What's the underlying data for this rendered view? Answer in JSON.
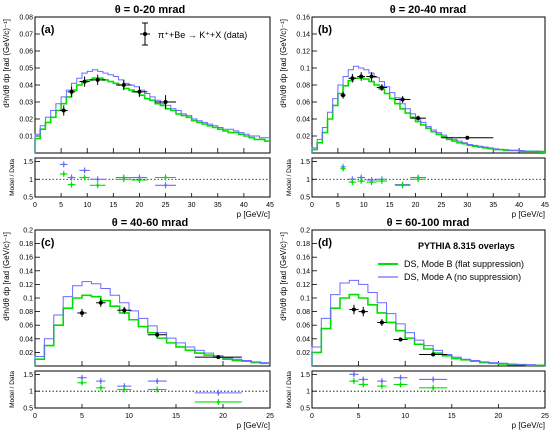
{
  "figure": {
    "legend_header": "PYTHIA 8.315 overlays",
    "model_legend": [
      {
        "name": "DS, Mode B (flat suppression)",
        "color": "#00e000"
      },
      {
        "name": "DS, Mode A (no suppression)",
        "color": "#6b6bff"
      }
    ],
    "data_legend": "π⁺+Be → K⁺+X (data)",
    "colors": {
      "data": "#000000",
      "mode_b": "#00e000",
      "mode_a": "#6b6bff"
    }
  },
  "chart_data": [
    {
      "type": "line",
      "title": "θ = 0-20 mrad",
      "tag": "(a)",
      "xlabel": "p [GeV/c]",
      "ylabel": "d²n/dθ dp [rad (GeV/c)⁻¹]",
      "ratio_ylabel": "Model / Data",
      "xlim": [
        0,
        45
      ],
      "ylim": [
        0,
        0.08
      ],
      "ratio_ylim": [
        0.5,
        1.6
      ],
      "xticks": [
        "0",
        "5",
        "10",
        "15",
        "20",
        "25",
        "30",
        "35",
        "40",
        "45"
      ],
      "yticks": [
        "0.01",
        "0.02",
        "0.03",
        "0.04",
        "0.05",
        "0.06",
        "0.07",
        "0.08"
      ],
      "ratio_yticks": [
        "0.5",
        "1",
        "1.5"
      ],
      "bin_edges": [
        0,
        1,
        2,
        3,
        4,
        5,
        6,
        7,
        8,
        9,
        10,
        11,
        12,
        13,
        14,
        15,
        16,
        17,
        18,
        19,
        20,
        21,
        22,
        23,
        24,
        25,
        26,
        27,
        28,
        29,
        30,
        31,
        32,
        33,
        34,
        35,
        36,
        37,
        38,
        39,
        40,
        41,
        42,
        43,
        44,
        45
      ],
      "series": [
        {
          "name": "DS, Mode B (flat suppression)",
          "color": "#00e000",
          "values": [
            0.0085,
            0.014,
            0.018,
            0.021,
            0.025,
            0.029,
            0.033,
            0.037,
            0.04,
            0.042,
            0.043,
            0.044,
            0.044,
            0.043,
            0.042,
            0.041,
            0.04,
            0.038,
            0.037,
            0.036,
            0.034,
            0.032,
            0.031,
            0.029,
            0.028,
            0.026,
            0.025,
            0.023,
            0.022,
            0.021,
            0.019,
            0.018,
            0.017,
            0.016,
            0.015,
            0.014,
            0.013,
            0.012,
            0.012,
            0.011,
            0.01,
            0.009,
            0.008,
            0.008,
            0.007
          ]
        },
        {
          "name": "DS, Mode A (no suppression)",
          "color": "#6b6bff",
          "values": [
            0.011,
            0.016,
            0.021,
            0.025,
            0.029,
            0.033,
            0.037,
            0.041,
            0.044,
            0.047,
            0.048,
            0.049,
            0.048,
            0.047,
            0.046,
            0.045,
            0.043,
            0.041,
            0.04,
            0.039,
            0.037,
            0.035,
            0.033,
            0.031,
            0.029,
            0.028,
            0.026,
            0.025,
            0.023,
            0.022,
            0.02,
            0.019,
            0.018,
            0.017,
            0.016,
            0.015,
            0.014,
            0.014,
            0.013,
            0.012,
            0.011,
            0.01,
            0.01,
            0.009,
            0.009
          ]
        }
      ],
      "data": [
        {
          "x": 5.5,
          "y": 0.025,
          "xerr": 0.75,
          "yerr": 0.003
        },
        {
          "x": 7.0,
          "y": 0.036,
          "xerr": 0.75,
          "yerr": 0.003
        },
        {
          "x": 9.5,
          "y": 0.042,
          "xerr": 1.0,
          "yerr": 0.003
        },
        {
          "x": 12.0,
          "y": 0.043,
          "xerr": 1.5,
          "yerr": 0.003
        },
        {
          "x": 17.0,
          "y": 0.04,
          "xerr": 1.5,
          "yerr": 0.003
        },
        {
          "x": 20.0,
          "y": 0.036,
          "xerr": 1.5,
          "yerr": 0.003
        },
        {
          "x": 25.0,
          "y": 0.03,
          "xerr": 2.0,
          "yerr": 0.004
        }
      ],
      "ratio": [
        {
          "x": 5.5,
          "xerr": 0.75,
          "a": 1.42,
          "b": 1.15
        },
        {
          "x": 7.0,
          "xerr": 0.75,
          "a": 1.05,
          "b": 0.85
        },
        {
          "x": 9.5,
          "xerr": 1.0,
          "a": 1.25,
          "b": 1.05
        },
        {
          "x": 12.0,
          "xerr": 1.5,
          "a": 1.0,
          "b": 0.83
        },
        {
          "x": 17.0,
          "xerr": 1.5,
          "a": 1.05,
          "b": 1.0
        },
        {
          "x": 20.0,
          "xerr": 1.5,
          "a": 1.05,
          "b": 0.98
        },
        {
          "x": 25.0,
          "xerr": 2.0,
          "a": 0.83,
          "b": 1.05
        }
      ]
    },
    {
      "type": "line",
      "title": "θ = 20-40 mrad",
      "tag": "(b)",
      "xlabel": "p [GeV/c]",
      "ylabel": "d²n/dθ dp [rad (GeV/c)⁻¹]",
      "ratio_ylabel": "Model / Data",
      "xlim": [
        0,
        45
      ],
      "ylim": [
        0,
        0.16
      ],
      "ratio_ylim": [
        0.5,
        1.6
      ],
      "xticks": [
        "0",
        "5",
        "10",
        "15",
        "20",
        "25",
        "30",
        "35",
        "40",
        "45"
      ],
      "yticks": [
        "0.02",
        "0.04",
        "0.06",
        "0.08",
        "0.1",
        "0.12",
        "0.14",
        "0.16"
      ],
      "ratio_yticks": [
        "0.5",
        "1",
        "1.5"
      ],
      "bin_edges": [
        0,
        1,
        2,
        3,
        4,
        5,
        6,
        7,
        8,
        9,
        10,
        11,
        12,
        13,
        14,
        15,
        16,
        17,
        18,
        19,
        20,
        21,
        22,
        23,
        24,
        25,
        26,
        27,
        28,
        29,
        30,
        31,
        32,
        33,
        34,
        35,
        36,
        37,
        38,
        39,
        40,
        41,
        42,
        43,
        44,
        45
      ],
      "series": [
        {
          "name": "DS, Mode B (flat suppression)",
          "color": "#00e000",
          "values": [
            0.004,
            0.012,
            0.024,
            0.04,
            0.056,
            0.07,
            0.079,
            0.085,
            0.088,
            0.088,
            0.087,
            0.084,
            0.08,
            0.075,
            0.07,
            0.064,
            0.058,
            0.052,
            0.047,
            0.042,
            0.037,
            0.033,
            0.029,
            0.025,
            0.022,
            0.019,
            0.016,
            0.014,
            0.012,
            0.011,
            0.009,
            0.008,
            0.007,
            0.006,
            0.005,
            0.004,
            0.004,
            0.003,
            0.003,
            0.003,
            0.002,
            0.002,
            0.002,
            0.002,
            0.001
          ]
        },
        {
          "name": "DS, Mode A (no suppression)",
          "color": "#6b6bff",
          "values": [
            0.006,
            0.016,
            0.03,
            0.048,
            0.064,
            0.08,
            0.09,
            0.098,
            0.102,
            0.1,
            0.098,
            0.094,
            0.089,
            0.084,
            0.078,
            0.071,
            0.065,
            0.058,
            0.052,
            0.046,
            0.041,
            0.036,
            0.031,
            0.027,
            0.024,
            0.021,
            0.018,
            0.016,
            0.014,
            0.012,
            0.01,
            0.009,
            0.008,
            0.007,
            0.006,
            0.005,
            0.004,
            0.004,
            0.003,
            0.003,
            0.003,
            0.002,
            0.002,
            0.002,
            0.002
          ]
        }
      ],
      "data": [
        {
          "x": 6.0,
          "y": 0.068,
          "xerr": 0.5,
          "yerr": 0.004
        },
        {
          "x": 7.8,
          "y": 0.088,
          "xerr": 0.75,
          "yerr": 0.005
        },
        {
          "x": 9.5,
          "y": 0.09,
          "xerr": 0.75,
          "yerr": 0.005
        },
        {
          "x": 11.5,
          "y": 0.09,
          "xerr": 1.0,
          "yerr": 0.005
        },
        {
          "x": 13.5,
          "y": 0.077,
          "xerr": 1.0,
          "yerr": 0.004
        },
        {
          "x": 17.5,
          "y": 0.063,
          "xerr": 1.5,
          "yerr": 0.004
        },
        {
          "x": 20.5,
          "y": 0.041,
          "xerr": 1.5,
          "yerr": 0.003
        },
        {
          "x": 30.0,
          "y": 0.018,
          "xerr": 5.0,
          "yerr": 0.002
        }
      ],
      "ratio": [
        {
          "x": 6.0,
          "xerr": 0.5,
          "a": 1.35,
          "b": 1.3
        },
        {
          "x": 7.8,
          "xerr": 0.75,
          "a": 1.0,
          "b": 0.92
        },
        {
          "x": 9.5,
          "xerr": 0.75,
          "a": 1.05,
          "b": 0.95
        },
        {
          "x": 11.5,
          "xerr": 1.0,
          "a": 0.98,
          "b": 0.92
        },
        {
          "x": 13.5,
          "xerr": 1.0,
          "a": 1.0,
          "b": 0.95
        },
        {
          "x": 17.5,
          "xerr": 1.5,
          "a": 0.85,
          "b": 0.83
        },
        {
          "x": 20.5,
          "xerr": 1.5,
          "a": 1.05,
          "b": 1.0
        }
      ]
    },
    {
      "type": "line",
      "title": "θ = 40-60 mrad",
      "tag": "(c)",
      "xlabel": "p [GeV/c]",
      "ylabel": "d²n/dθ dp [rad (GeV/c)⁻¹]",
      "ratio_ylabel": "Model / Data",
      "xlim": [
        0,
        25
      ],
      "ylim": [
        0,
        0.2
      ],
      "ratio_ylim": [
        0.5,
        1.6
      ],
      "xticks": [
        "0",
        "5",
        "10",
        "15",
        "20",
        "25"
      ],
      "yticks": [
        "0.02",
        "0.04",
        "0.06",
        "0.08",
        "0.1",
        "0.12",
        "0.14",
        "0.16",
        "0.18",
        "0.2"
      ],
      "ratio_yticks": [
        "0.5",
        "1",
        "1.5"
      ],
      "bin_edges": [
        0,
        1,
        2,
        3,
        4,
        5,
        6,
        7,
        8,
        9,
        10,
        11,
        12,
        13,
        14,
        15,
        16,
        17,
        18,
        19,
        20,
        21,
        22,
        23,
        24,
        25
      ],
      "series": [
        {
          "name": "DS, Mode B (flat suppression)",
          "color": "#00e000",
          "values": [
            0.01,
            0.03,
            0.06,
            0.085,
            0.1,
            0.104,
            0.102,
            0.096,
            0.088,
            0.078,
            0.068,
            0.058,
            0.049,
            0.041,
            0.034,
            0.028,
            0.023,
            0.019,
            0.016,
            0.013,
            0.01,
            0.008,
            0.007,
            0.005,
            0.004
          ]
        },
        {
          "name": "DS, Mode A (no suppression)",
          "color": "#6b6bff",
          "values": [
            0.014,
            0.04,
            0.075,
            0.102,
            0.118,
            0.124,
            0.121,
            0.114,
            0.104,
            0.093,
            0.081,
            0.07,
            0.059,
            0.049,
            0.041,
            0.034,
            0.028,
            0.023,
            0.019,
            0.015,
            0.012,
            0.01,
            0.008,
            0.006,
            0.005
          ]
        }
      ],
      "data": [
        {
          "x": 5.0,
          "y": 0.078,
          "xerr": 0.5,
          "yerr": 0.006
        },
        {
          "x": 7.0,
          "y": 0.093,
          "xerr": 0.5,
          "yerr": 0.006
        },
        {
          "x": 9.5,
          "y": 0.082,
          "xerr": 0.75,
          "yerr": 0.005
        },
        {
          "x": 13.0,
          "y": 0.046,
          "xerr": 1.0,
          "yerr": 0.003
        },
        {
          "x": 19.5,
          "y": 0.013,
          "xerr": 2.5,
          "yerr": 0.002
        }
      ],
      "ratio": [
        {
          "x": 5.0,
          "xerr": 0.5,
          "a": 1.4,
          "b": 1.25
        },
        {
          "x": 7.0,
          "xerr": 0.5,
          "a": 1.3,
          "b": 1.1
        },
        {
          "x": 9.5,
          "xerr": 0.75,
          "a": 1.15,
          "b": 1.05
        },
        {
          "x": 13.0,
          "xerr": 1.0,
          "a": 1.3,
          "b": 1.05
        },
        {
          "x": 19.5,
          "xerr": 2.5,
          "a": 0.95,
          "b": 0.68
        }
      ]
    },
    {
      "type": "line",
      "title": "θ = 60-100 mrad",
      "tag": "(d)",
      "xlabel": "p [GeV/c]",
      "ylabel": "d²n/dθ dp [rad (GeV/c)⁻¹]",
      "ratio_ylabel": "Model / Data",
      "xlim": [
        0,
        25
      ],
      "ylim": [
        0,
        0.2
      ],
      "ratio_ylim": [
        0.5,
        1.6
      ],
      "xticks": [
        "0",
        "5",
        "10",
        "15",
        "20",
        "25"
      ],
      "yticks": [
        "0.02",
        "0.04",
        "0.06",
        "0.08",
        "0.1",
        "0.12",
        "0.14",
        "0.16",
        "0.18",
        "0.2"
      ],
      "ratio_yticks": [
        "0.5",
        "1",
        "1.5"
      ],
      "bin_edges": [
        0,
        1,
        2,
        3,
        4,
        5,
        6,
        7,
        8,
        9,
        10,
        11,
        12,
        13,
        14,
        15,
        16,
        17,
        18,
        19,
        20,
        21,
        22,
        23,
        24,
        25
      ],
      "series": [
        {
          "name": "DS, Mode B (flat suppression)",
          "color": "#00e000",
          "values": [
            0.02,
            0.055,
            0.085,
            0.1,
            0.105,
            0.1,
            0.09,
            0.078,
            0.064,
            0.052,
            0.041,
            0.032,
            0.025,
            0.019,
            0.015,
            0.011,
            0.009,
            0.007,
            0.005,
            0.004,
            0.003,
            0.002,
            0.002,
            0.001,
            0.001
          ]
        },
        {
          "name": "DS, Mode A (no suppression)",
          "color": "#6b6bff",
          "values": [
            0.028,
            0.07,
            0.105,
            0.122,
            0.126,
            0.12,
            0.108,
            0.093,
            0.077,
            0.062,
            0.049,
            0.038,
            0.03,
            0.023,
            0.017,
            0.013,
            0.01,
            0.008,
            0.006,
            0.005,
            0.004,
            0.003,
            0.002,
            0.002,
            0.001
          ]
        }
      ],
      "data": [
        {
          "x": 4.5,
          "y": 0.083,
          "xerr": 0.5,
          "yerr": 0.007
        },
        {
          "x": 5.5,
          "y": 0.08,
          "xerr": 0.5,
          "yerr": 0.007
        },
        {
          "x": 7.5,
          "y": 0.064,
          "xerr": 0.5,
          "yerr": 0.005
        },
        {
          "x": 9.5,
          "y": 0.039,
          "xerr": 0.75,
          "yerr": 0.003
        },
        {
          "x": 13.0,
          "y": 0.017,
          "xerr": 1.5,
          "yerr": 0.002
        }
      ],
      "ratio": [
        {
          "x": 4.5,
          "xerr": 0.5,
          "a": 1.5,
          "b": 1.3
        },
        {
          "x": 5.5,
          "xerr": 0.5,
          "a": 1.35,
          "b": 1.2
        },
        {
          "x": 7.5,
          "xerr": 0.5,
          "a": 1.3,
          "b": 1.15
        },
        {
          "x": 9.5,
          "xerr": 0.75,
          "a": 1.4,
          "b": 1.2
        },
        {
          "x": 13.0,
          "xerr": 1.5,
          "a": 1.35,
          "b": 1.1
        }
      ]
    }
  ]
}
